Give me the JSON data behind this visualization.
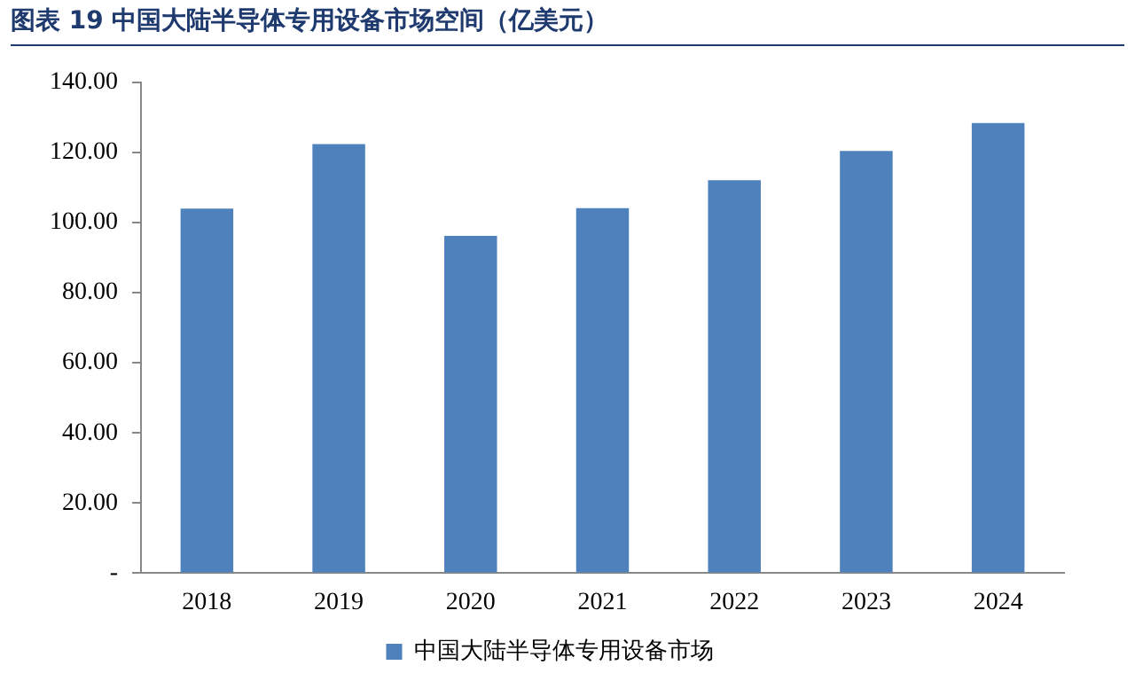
{
  "chart_data": {
    "type": "bar",
    "title": "图表 19 中国大陆半导体专用设备市场空间（亿美元）",
    "categories": [
      "2018",
      "2019",
      "2020",
      "2021",
      "2022",
      "2023",
      "2024"
    ],
    "series": [
      {
        "name": "中国大陆半导体专用设备市场",
        "color": "#4f81bd",
        "values": [
          104,
          122.4,
          96.2,
          104.1,
          112.1,
          120.4,
          128.4
        ]
      }
    ],
    "ylim": [
      0,
      140
    ],
    "yticks": [
      {
        "value": 0,
        "label": "-"
      },
      {
        "value": 20,
        "label": "20.00"
      },
      {
        "value": 40,
        "label": "40.00"
      },
      {
        "value": 60,
        "label": "60.00"
      },
      {
        "value": 80,
        "label": "80.00"
      },
      {
        "value": 100,
        "label": "100.00"
      },
      {
        "value": 120,
        "label": "120.00"
      },
      {
        "value": 140,
        "label": "140.00"
      }
    ],
    "grid": false,
    "legend": "bottom"
  }
}
